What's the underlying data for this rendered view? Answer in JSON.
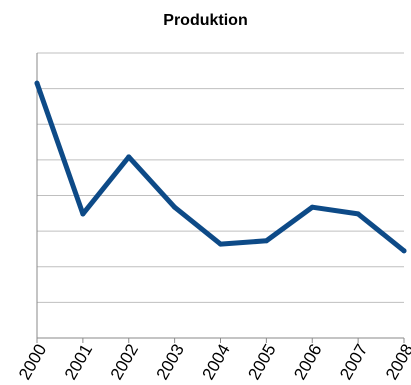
{
  "chart_data": {
    "type": "line",
    "title": "Produktion",
    "xlabel": "",
    "ylabel": "",
    "categories": [
      "2000",
      "2001",
      "2002",
      "2003",
      "2004",
      "2005",
      "2006",
      "2007",
      "2008"
    ],
    "series": [
      {
        "values": [
          7.6,
          3.7,
          5.4,
          3.9,
          2.8,
          2.9,
          3.9,
          3.7,
          2.6
        ]
      }
    ],
    "ylim": [
      0,
      8.5
    ],
    "grid": true,
    "legend": "none",
    "colors": {
      "line": "#0d4a87",
      "grid": "#bfbfbf",
      "axis": "#8a8a8a"
    }
  }
}
